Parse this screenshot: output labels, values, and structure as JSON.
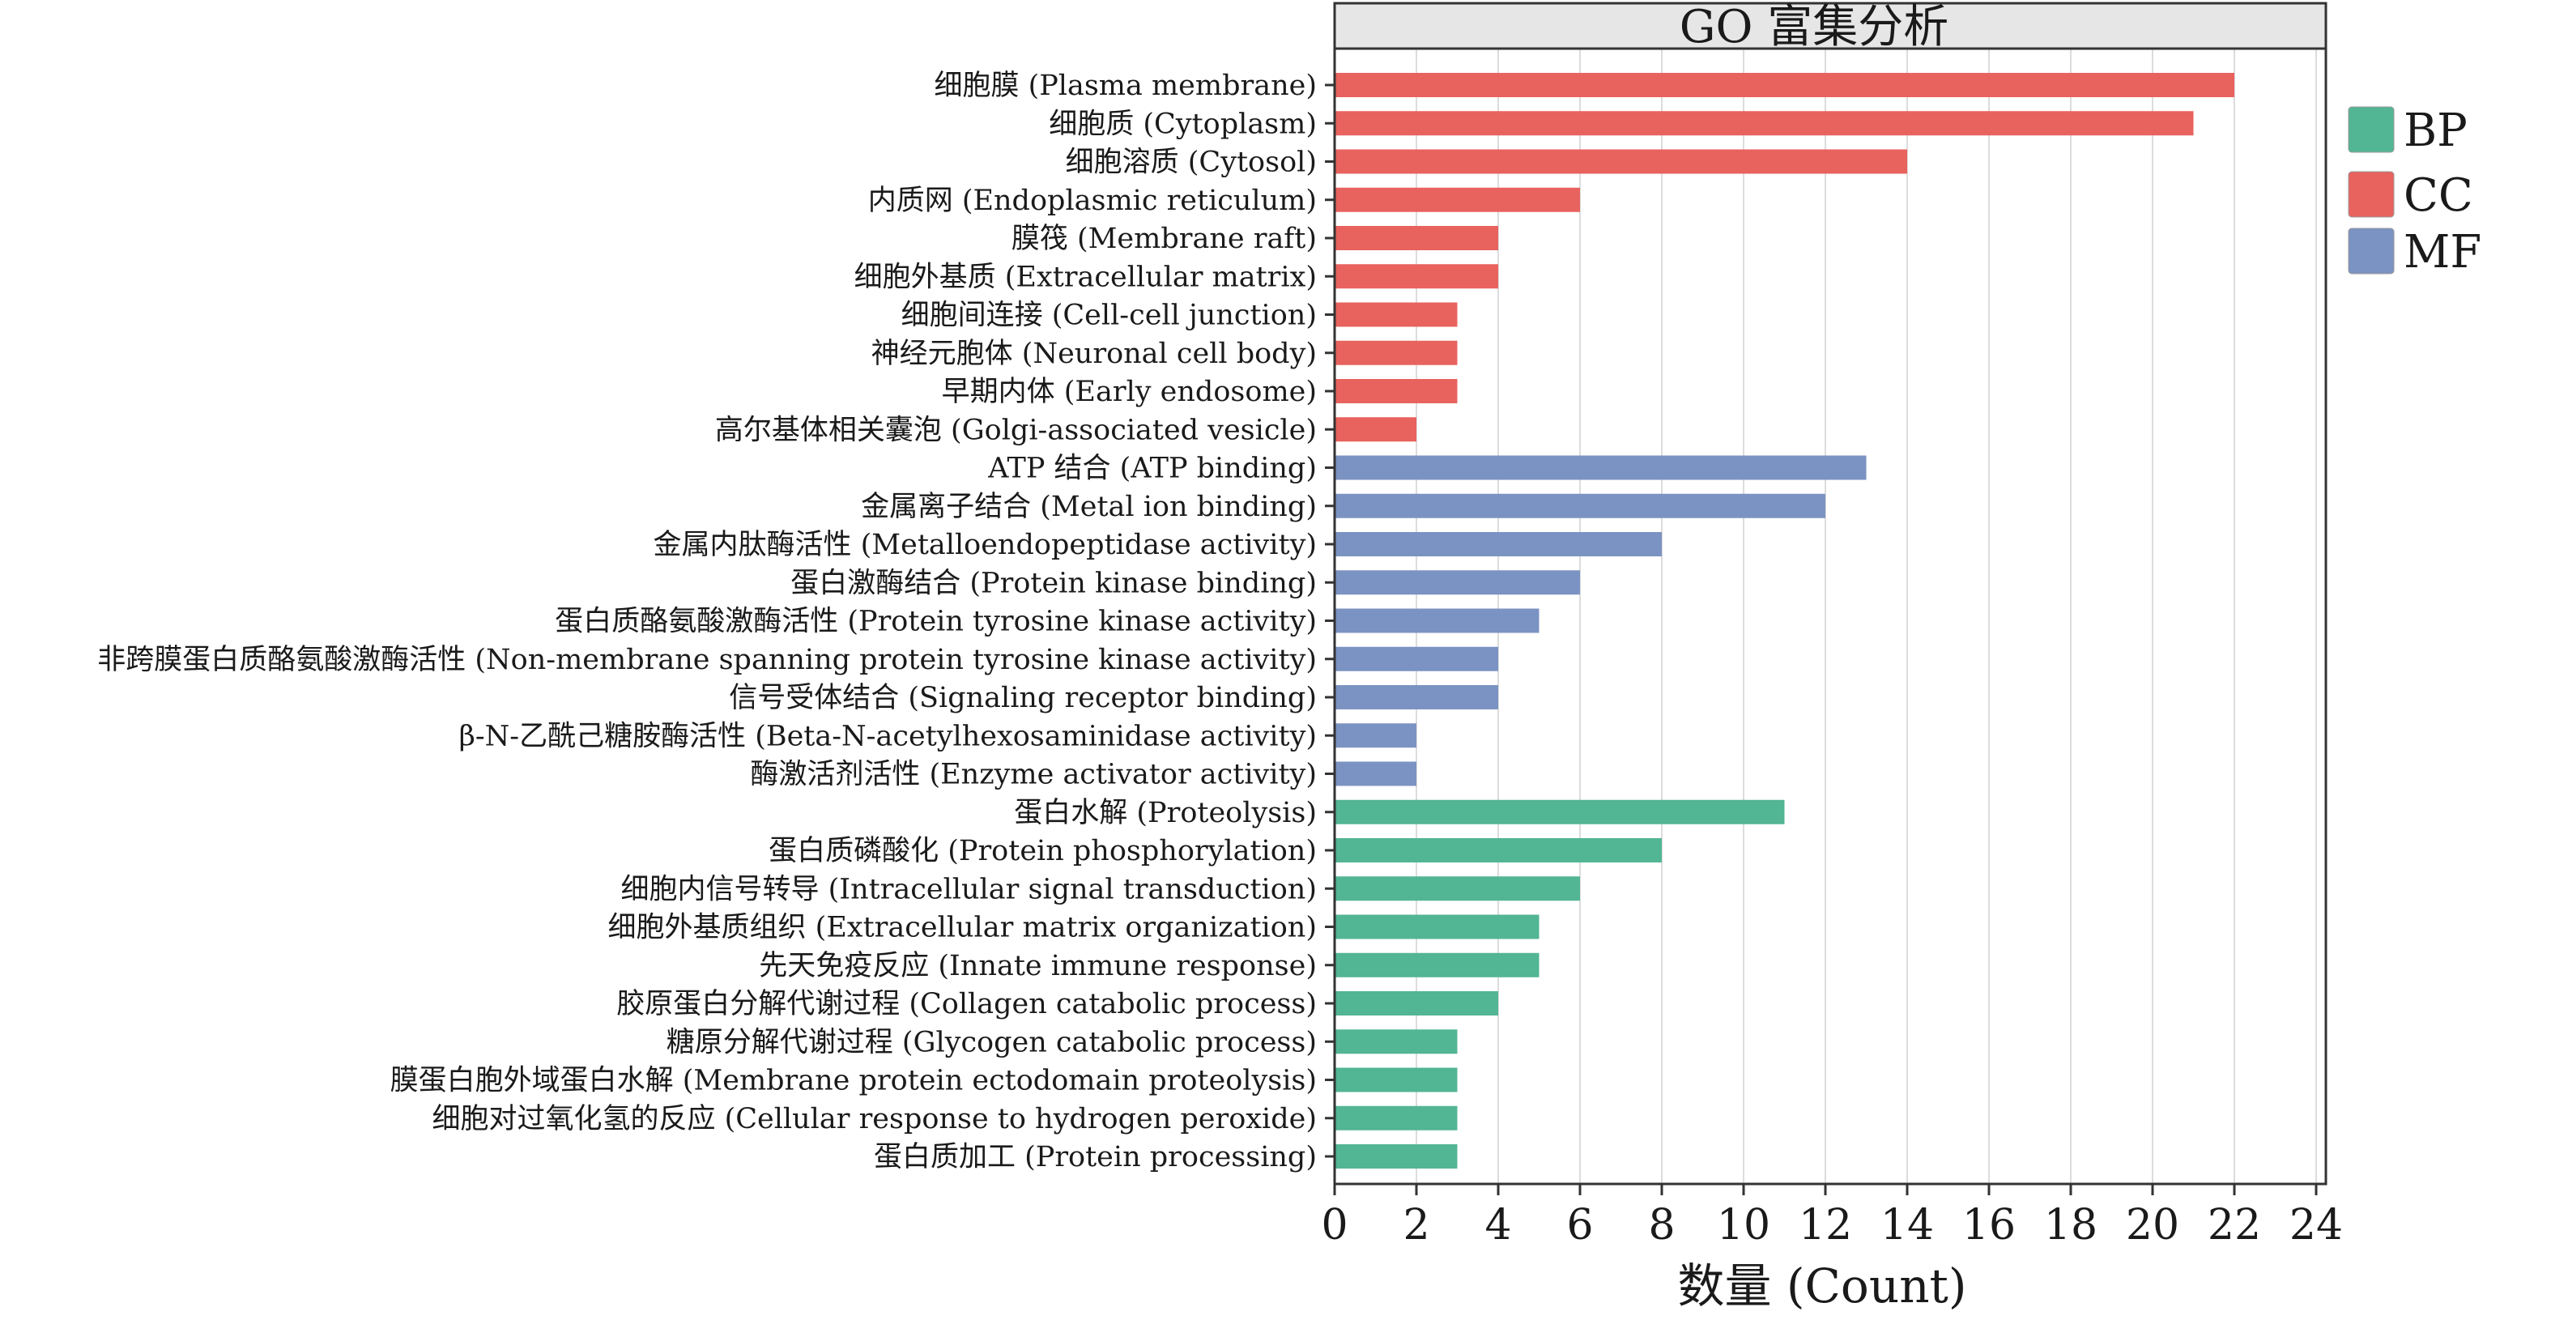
{
  "chart_data": {
    "type": "bar",
    "orientation": "horizontal",
    "title": "GO 富集分析",
    "xlabel": "数量 (Count)",
    "ylabel": "",
    "xlim": [
      0,
      24
    ],
    "x_ticks": [
      0,
      2,
      4,
      6,
      8,
      10,
      12,
      14,
      16,
      18,
      20,
      22,
      24
    ],
    "grid": "vertical",
    "legend_position": "right",
    "colors": {
      "BP": "#52b594",
      "CC": "#e8625e",
      "MF": "#7b93c2"
    },
    "legend": [
      {
        "name": "BP",
        "color": "#52b594"
      },
      {
        "name": "CC",
        "color": "#e8625e"
      },
      {
        "name": "MF",
        "color": "#7b93c2"
      }
    ],
    "categories": [
      {
        "label": "细胞膜 (Plasma membrane)",
        "group": "CC",
        "value": 22
      },
      {
        "label": "细胞质 (Cytoplasm)",
        "group": "CC",
        "value": 21
      },
      {
        "label": "细胞溶质 (Cytosol)",
        "group": "CC",
        "value": 14
      },
      {
        "label": "内质网 (Endoplasmic reticulum)",
        "group": "CC",
        "value": 6
      },
      {
        "label": "膜筏 (Membrane raft)",
        "group": "CC",
        "value": 4
      },
      {
        "label": "细胞外基质 (Extracellular matrix)",
        "group": "CC",
        "value": 4
      },
      {
        "label": "细胞间连接 (Cell-cell junction)",
        "group": "CC",
        "value": 3
      },
      {
        "label": "神经元胞体 (Neuronal cell body)",
        "group": "CC",
        "value": 3
      },
      {
        "label": "早期内体 (Early endosome)",
        "group": "CC",
        "value": 3
      },
      {
        "label": "高尔基体相关囊泡 (Golgi-associated vesicle)",
        "group": "CC",
        "value": 2
      },
      {
        "label": "ATP 结合 (ATP binding)",
        "group": "MF",
        "value": 13
      },
      {
        "label": "金属离子结合 (Metal ion binding)",
        "group": "MF",
        "value": 12
      },
      {
        "label": "金属内肽酶活性 (Metalloendopeptidase activity)",
        "group": "MF",
        "value": 8
      },
      {
        "label": "蛋白激酶结合 (Protein kinase binding)",
        "group": "MF",
        "value": 6
      },
      {
        "label": "蛋白质酪氨酸激酶活性 (Protein tyrosine kinase activity)",
        "group": "MF",
        "value": 5
      },
      {
        "label": "非跨膜蛋白质酪氨酸激酶活性 (Non-membrane spanning protein tyrosine kinase activity)",
        "group": "MF",
        "value": 4
      },
      {
        "label": "信号受体结合 (Signaling receptor binding)",
        "group": "MF",
        "value": 4
      },
      {
        "label": "β-N-乙酰己糖胺酶活性 (Beta-N-acetylhexosaminidase activity)",
        "group": "MF",
        "value": 2
      },
      {
        "label": "酶激活剂活性 (Enzyme activator activity)",
        "group": "MF",
        "value": 2
      },
      {
        "label": "蛋白水解 (Proteolysis)",
        "group": "BP",
        "value": 11
      },
      {
        "label": "蛋白质磷酸化 (Protein phosphorylation)",
        "group": "BP",
        "value": 8
      },
      {
        "label": "细胞内信号转导 (Intracellular signal transduction)",
        "group": "BP",
        "value": 6
      },
      {
        "label": "细胞外基质组织 (Extracellular matrix organization)",
        "group": "BP",
        "value": 5
      },
      {
        "label": "先天免疫反应 (Innate immune response)",
        "group": "BP",
        "value": 5
      },
      {
        "label": "胶原蛋白分解代谢过程 (Collagen catabolic process)",
        "group": "BP",
        "value": 4
      },
      {
        "label": "糖原分解代谢过程 (Glycogen catabolic process)",
        "group": "BP",
        "value": 3
      },
      {
        "label": "膜蛋白胞外域蛋白水解 (Membrane protein ectodomain proteolysis)",
        "group": "BP",
        "value": 3
      },
      {
        "label": "细胞对过氧化氢的反应 (Cellular response to hydrogen peroxide)",
        "group": "BP",
        "value": 3
      },
      {
        "label": "蛋白质加工 (Protein processing)",
        "group": "BP",
        "value": 3
      }
    ]
  }
}
